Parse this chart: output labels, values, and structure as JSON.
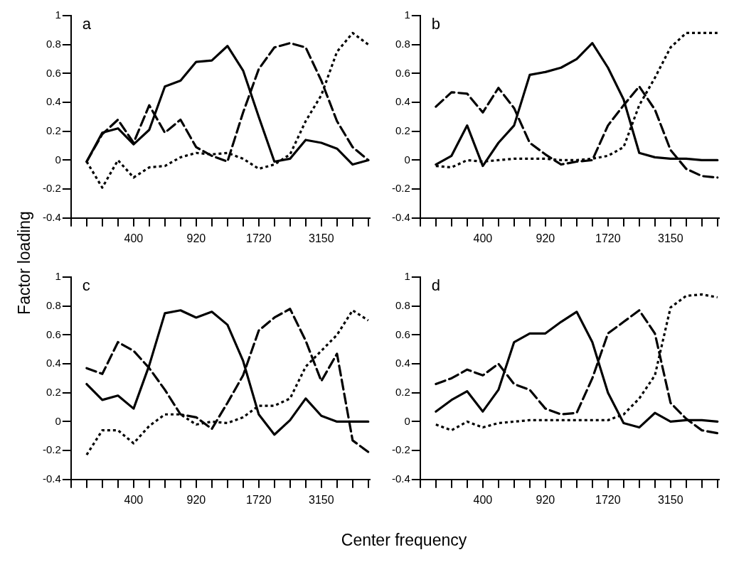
{
  "chart_data": [
    {
      "type": "line",
      "title": "a",
      "ylabel": "Factor loading",
      "categories": [
        null,
        null,
        null,
        "400",
        null,
        null,
        null,
        "920",
        null,
        null,
        null,
        "1720",
        null,
        null,
        null,
        "3150",
        null,
        null,
        null
      ],
      "ylim": [
        -0.4,
        1
      ],
      "yticks": [
        -0.4,
        -0.2,
        0,
        0.2,
        0.4,
        0.6,
        0.8,
        1
      ],
      "series": [
        {
          "color": "#000000",
          "line_style": "solid",
          "values": [
            -0.01,
            0.19,
            0.22,
            0.11,
            0.21,
            0.51,
            0.55,
            0.68,
            0.69,
            0.79,
            0.62,
            0.3,
            -0.01,
            0.01,
            0.14,
            0.12,
            0.08,
            -0.03,
            0.0
          ]
        },
        {
          "color": "#000000",
          "line_style": "dashed",
          "values": [
            -0.01,
            0.18,
            0.28,
            0.12,
            0.38,
            0.19,
            0.28,
            0.09,
            0.03,
            -0.01,
            0.33,
            0.63,
            0.78,
            0.81,
            0.78,
            0.55,
            0.27,
            0.09,
            0.0
          ]
        },
        {
          "color": "#000000",
          "line_style": "dotted",
          "values": [
            -0.01,
            -0.19,
            0.0,
            -0.12,
            -0.05,
            -0.04,
            0.02,
            0.05,
            0.04,
            0.05,
            0.01,
            -0.06,
            -0.03,
            0.04,
            0.27,
            0.45,
            0.75,
            0.88,
            0.8
          ]
        }
      ]
    },
    {
      "type": "line",
      "title": "b",
      "categories": [
        null,
        null,
        null,
        "400",
        null,
        null,
        null,
        "920",
        null,
        null,
        null,
        "1720",
        null,
        null,
        null,
        "3150",
        null,
        null,
        null
      ],
      "ylim": [
        -0.4,
        1
      ],
      "yticks": [
        -0.4,
        -0.2,
        0,
        0.2,
        0.4,
        0.6,
        0.8,
        1
      ],
      "series": [
        {
          "color": "#000000",
          "line_style": "solid",
          "values": [
            -0.03,
            0.03,
            0.24,
            -0.04,
            0.12,
            0.24,
            0.59,
            0.61,
            0.64,
            0.7,
            0.81,
            0.64,
            0.42,
            0.05,
            0.02,
            0.01,
            0.01,
            0.0,
            0.0
          ]
        },
        {
          "color": "#000000",
          "line_style": "dashed",
          "values": [
            0.37,
            0.47,
            0.46,
            0.33,
            0.5,
            0.36,
            0.12,
            0.04,
            -0.03,
            -0.01,
            0.0,
            0.24,
            0.38,
            0.51,
            0.35,
            0.07,
            -0.06,
            -0.11,
            -0.12
          ]
        },
        {
          "color": "#000000",
          "line_style": "dotted",
          "values": [
            -0.04,
            -0.05,
            0.0,
            -0.01,
            0.0,
            0.01,
            0.01,
            0.01,
            0.0,
            0.0,
            0.01,
            0.03,
            0.09,
            0.38,
            0.57,
            0.78,
            0.88,
            0.88,
            0.88
          ]
        }
      ]
    },
    {
      "type": "line",
      "title": "c",
      "xlabel": "Center frequency",
      "categories": [
        null,
        null,
        null,
        "400",
        null,
        null,
        null,
        "920",
        null,
        null,
        null,
        "1720",
        null,
        null,
        null,
        "3150",
        null,
        null,
        null
      ],
      "ylim": [
        -0.4,
        1
      ],
      "yticks": [
        -0.4,
        -0.2,
        0,
        0.2,
        0.4,
        0.6,
        0.8,
        1
      ],
      "series": [
        {
          "color": "#000000",
          "line_style": "solid",
          "values": [
            0.26,
            0.15,
            0.18,
            0.09,
            0.39,
            0.75,
            0.77,
            0.72,
            0.76,
            0.67,
            0.42,
            0.05,
            -0.09,
            0.01,
            0.16,
            0.04,
            0.0,
            0.0,
            0.0
          ]
        },
        {
          "color": "#000000",
          "line_style": "dashed",
          "values": [
            0.37,
            0.33,
            0.55,
            0.49,
            0.37,
            0.22,
            0.05,
            0.03,
            -0.05,
            0.13,
            0.32,
            0.63,
            0.72,
            0.78,
            0.56,
            0.28,
            0.47,
            -0.13,
            -0.21
          ]
        },
        {
          "color": "#000000",
          "line_style": "dotted",
          "values": [
            -0.23,
            -0.06,
            -0.06,
            -0.15,
            -0.03,
            0.05,
            0.05,
            -0.02,
            0.0,
            -0.01,
            0.03,
            0.11,
            0.11,
            0.16,
            0.38,
            0.49,
            0.6,
            0.77,
            0.7
          ]
        }
      ]
    },
    {
      "type": "line",
      "title": "d",
      "categories": [
        null,
        null,
        null,
        "400",
        null,
        null,
        null,
        "920",
        null,
        null,
        null,
        "1720",
        null,
        null,
        null,
        "3150",
        null,
        null,
        null
      ],
      "ylim": [
        -0.4,
        1
      ],
      "yticks": [
        -0.4,
        -0.2,
        0,
        0.2,
        0.4,
        0.6,
        0.8,
        1
      ],
      "series": [
        {
          "color": "#000000",
          "line_style": "solid",
          "values": [
            0.07,
            0.15,
            0.21,
            0.07,
            0.22,
            0.55,
            0.61,
            0.61,
            0.69,
            0.76,
            0.55,
            0.2,
            -0.01,
            -0.04,
            0.06,
            0.0,
            0.01,
            0.01,
            0.0
          ]
        },
        {
          "color": "#000000",
          "line_style": "dashed",
          "values": [
            0.26,
            0.3,
            0.36,
            0.32,
            0.4,
            0.26,
            0.22,
            0.09,
            0.05,
            0.06,
            0.3,
            0.61,
            0.69,
            0.77,
            0.61,
            0.13,
            0.02,
            -0.06,
            -0.08
          ]
        },
        {
          "color": "#000000",
          "line_style": "dotted",
          "values": [
            -0.02,
            -0.06,
            0.0,
            -0.04,
            -0.01,
            0.0,
            0.01,
            0.01,
            0.01,
            0.01,
            0.01,
            0.01,
            0.05,
            0.16,
            0.32,
            0.79,
            0.87,
            0.88,
            0.86
          ]
        }
      ]
    }
  ]
}
